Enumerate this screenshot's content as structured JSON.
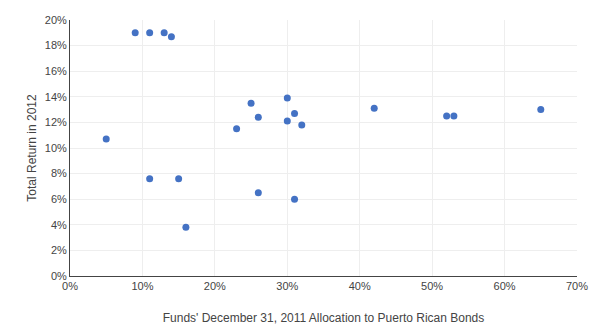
{
  "chart_data": {
    "type": "scatter",
    "xlabel": "Funds' December 31, 2011 Allocation to Puerto Rican Bonds",
    "ylabel": "Total Return in 2012",
    "x": [
      0.05,
      0.09,
      0.11,
      0.13,
      0.14,
      0.11,
      0.15,
      0.16,
      0.23,
      0.25,
      0.26,
      0.26,
      0.3,
      0.3,
      0.31,
      0.31,
      0.32,
      0.42,
      0.52,
      0.53,
      0.65
    ],
    "values": [
      0.107,
      0.19,
      0.19,
      0.19,
      0.187,
      0.076,
      0.076,
      0.038,
      0.115,
      0.135,
      0.124,
      0.065,
      0.139,
      0.121,
      0.127,
      0.06,
      0.118,
      0.131,
      0.125,
      0.125,
      0.13
    ],
    "color": "#4472C4",
    "xlim": [
      0.0,
      0.7
    ],
    "ylim": [
      0.0,
      0.2
    ],
    "xticks": [
      {
        "value": 0.0,
        "label": "0%"
      },
      {
        "value": 0.1,
        "label": "10%"
      },
      {
        "value": 0.2,
        "label": "20%"
      },
      {
        "value": 0.3,
        "label": "30%"
      },
      {
        "value": 0.4,
        "label": "40%"
      },
      {
        "value": 0.5,
        "label": "50%"
      },
      {
        "value": 0.6,
        "label": "60%"
      },
      {
        "value": 0.7,
        "label": "70%"
      }
    ],
    "yticks": [
      {
        "value": 0.0,
        "label": "0%"
      },
      {
        "value": 0.02,
        "label": "2%"
      },
      {
        "value": 0.04,
        "label": "4%"
      },
      {
        "value": 0.06,
        "label": "6%"
      },
      {
        "value": 0.08,
        "label": "8%"
      },
      {
        "value": 0.1,
        "label": "10%"
      },
      {
        "value": 0.12,
        "label": "12%"
      },
      {
        "value": 0.14,
        "label": "14%"
      },
      {
        "value": 0.16,
        "label": "16%"
      },
      {
        "value": 0.18,
        "label": "18%"
      },
      {
        "value": 0.2,
        "label": "20%"
      }
    ],
    "grid": true
  }
}
